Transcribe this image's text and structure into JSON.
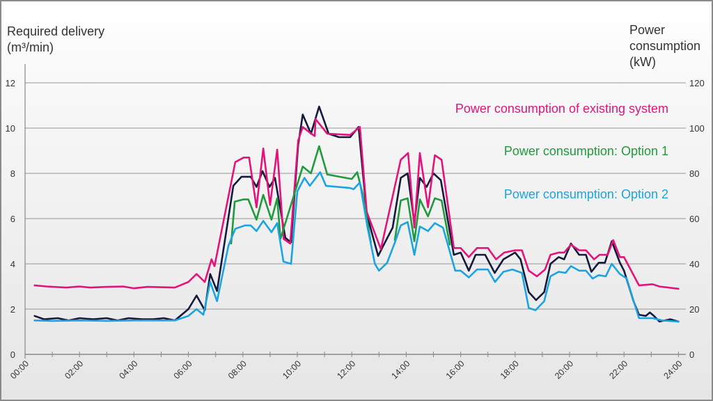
{
  "chart_data": {
    "type": "line",
    "y_left_label": [
      "Required delivery",
      "(m³/min)"
    ],
    "y_right_label": [
      "Power",
      "consumption",
      "(kW)"
    ],
    "y_left_ticks": [
      "0",
      "2",
      "4",
      "6",
      "8",
      "10",
      "12"
    ],
    "y_right_ticks": [
      "0",
      "20",
      "40",
      "60",
      "80",
      "100",
      "120"
    ],
    "ylim_left": [
      0,
      12
    ],
    "ylim_right": [
      0,
      120
    ],
    "xlim_hours": [
      0,
      24
    ],
    "x_ticks": [
      "00:00",
      "02:00",
      "04:00",
      "06:00",
      "08:00",
      "10:00",
      "12:00",
      "14:00",
      "16:00",
      "18:00",
      "20:00",
      "22:00",
      "24:00"
    ],
    "grid": true,
    "series": [
      {
        "name": "Required delivery",
        "axis": "left",
        "unit": "m³/min",
        "color": "#141a3c",
        "legend": false,
        "segments": [
          [
            [
              0.35,
              1.7
            ],
            [
              0.7,
              1.55
            ],
            [
              1.2,
              1.6
            ],
            [
              1.6,
              1.5
            ],
            [
              2.0,
              1.6
            ],
            [
              2.5,
              1.55
            ],
            [
              3.0,
              1.6
            ],
            [
              3.4,
              1.5
            ],
            [
              3.8,
              1.6
            ],
            [
              4.3,
              1.55
            ],
            [
              4.7,
              1.55
            ],
            [
              5.1,
              1.6
            ],
            [
              5.5,
              1.5
            ],
            [
              6.0,
              2.0
            ],
            [
              6.3,
              2.6
            ],
            [
              6.6,
              1.95
            ],
            [
              6.8,
              3.55
            ],
            [
              7.05,
              2.8
            ],
            [
              7.65,
              7.45
            ],
            [
              7.95,
              7.85
            ],
            [
              8.29,
              7.85
            ],
            [
              8.5,
              7.4
            ],
            [
              8.72,
              8.1
            ],
            [
              8.98,
              7.4
            ],
            [
              9.18,
              7.8
            ],
            [
              9.56,
              5.15
            ],
            [
              9.77,
              4.95
            ],
            [
              10.03,
              9.25
            ],
            [
              10.2,
              10.6
            ],
            [
              10.5,
              9.75
            ],
            [
              10.8,
              10.95
            ],
            [
              11.15,
              9.75
            ],
            [
              11.53,
              9.6
            ],
            [
              11.94,
              9.6
            ],
            [
              12.25,
              10.05
            ],
            [
              12.55,
              6.2
            ],
            [
              12.97,
              4.35
            ],
            [
              13.2,
              4.9
            ],
            [
              13.5,
              5.6
            ],
            [
              13.8,
              7.8
            ],
            [
              14.05,
              8.0
            ],
            [
              14.3,
              5.8
            ],
            [
              14.5,
              7.8
            ],
            [
              14.75,
              7.4
            ],
            [
              15.0,
              8.0
            ],
            [
              15.27,
              7.7
            ],
            [
              15.75,
              4.4
            ],
            [
              16.0,
              4.5
            ],
            [
              16.3,
              3.7
            ],
            [
              16.55,
              4.4
            ],
            [
              16.9,
              4.4
            ],
            [
              17.25,
              3.6
            ],
            [
              17.57,
              4.2
            ],
            [
              18.0,
              4.5
            ],
            [
              18.2,
              4.2
            ],
            [
              18.5,
              2.75
            ],
            [
              18.77,
              2.4
            ],
            [
              19.07,
              2.75
            ],
            [
              19.3,
              4.0
            ],
            [
              19.6,
              4.3
            ],
            [
              19.8,
              4.2
            ],
            [
              20.05,
              4.9
            ],
            [
              20.35,
              4.4
            ],
            [
              20.6,
              4.4
            ],
            [
              20.8,
              3.65
            ],
            [
              21.07,
              4.05
            ],
            [
              21.3,
              4.05
            ],
            [
              21.55,
              5.0
            ],
            [
              21.85,
              4.05
            ],
            [
              22.0,
              3.7
            ],
            [
              22.35,
              2.35
            ],
            [
              22.55,
              1.75
            ],
            [
              22.8,
              1.7
            ],
            [
              22.95,
              1.85
            ],
            [
              23.1,
              1.7
            ],
            [
              23.3,
              1.45
            ],
            [
              23.7,
              1.55
            ],
            [
              24.0,
              1.45
            ]
          ]
        ]
      },
      {
        "name": "Power consumption of existing system",
        "axis": "right",
        "unit": "kW",
        "color": "#e2147a",
        "legend": true,
        "segments": [
          [
            [
              0.35,
              30.5
            ],
            [
              0.8,
              30
            ],
            [
              1.5,
              29.5
            ],
            [
              2.0,
              30
            ],
            [
              2.4,
              29.5
            ],
            [
              3.0,
              29.8
            ],
            [
              3.6,
              30
            ],
            [
              4.0,
              29.2
            ],
            [
              4.5,
              29.8
            ],
            [
              5.5,
              29.5
            ],
            [
              6.0,
              32
            ],
            [
              6.3,
              35.5
            ],
            [
              6.6,
              32
            ],
            [
              6.85,
              42
            ],
            [
              6.96,
              39
            ],
            [
              7.72,
              85
            ],
            [
              8.03,
              87
            ],
            [
              8.23,
              87
            ],
            [
              8.5,
              65
            ],
            [
              8.75,
              91
            ],
            [
              9.0,
              66
            ],
            [
              9.26,
              90.5
            ],
            [
              9.5,
              51
            ],
            [
              9.74,
              49
            ],
            [
              10.03,
              94.5
            ],
            [
              10.2,
              100.5
            ],
            [
              10.46,
              98
            ],
            [
              10.64,
              96.5
            ],
            [
              10.67,
              104
            ],
            [
              11.1,
              97.5
            ],
            [
              11.94,
              97
            ],
            [
              12.3,
              100.5
            ],
            [
              12.55,
              63
            ],
            [
              13.07,
              46.5
            ],
            [
              13.8,
              86
            ],
            [
              14.07,
              89
            ],
            [
              14.3,
              56
            ],
            [
              14.5,
              89
            ],
            [
              14.8,
              65
            ],
            [
              15.05,
              88
            ],
            [
              15.3,
              86
            ],
            [
              15.75,
              47
            ],
            [
              16.0,
              47
            ],
            [
              16.3,
              43
            ],
            [
              16.6,
              47
            ],
            [
              17.0,
              47
            ],
            [
              17.3,
              42
            ],
            [
              17.6,
              45
            ],
            [
              18.0,
              46
            ],
            [
              18.25,
              46
            ],
            [
              18.5,
              37
            ],
            [
              18.8,
              34.5
            ],
            [
              19.1,
              37.5
            ],
            [
              19.3,
              44
            ],
            [
              19.6,
              45
            ],
            [
              19.8,
              45
            ],
            [
              20.05,
              48.5
            ],
            [
              20.35,
              46
            ],
            [
              20.6,
              46
            ],
            [
              20.9,
              42
            ],
            [
              21.1,
              44
            ],
            [
              21.4,
              44
            ],
            [
              21.6,
              50.5
            ],
            [
              21.85,
              43
            ],
            [
              22.0,
              43
            ],
            [
              22.55,
              30.5
            ],
            [
              23.05,
              31
            ],
            [
              23.3,
              30
            ],
            [
              24.0,
              29
            ]
          ]
        ]
      },
      {
        "name": "Power consumption: Option 1",
        "axis": "right",
        "unit": "kW",
        "color": "#1f9a3c",
        "legend": true,
        "segments": [
          [
            [
              7.57,
              49
            ],
            [
              7.7,
              67.5
            ],
            [
              8.03,
              68.5
            ],
            [
              8.2,
              68.5
            ],
            [
              8.5,
              59.5
            ],
            [
              8.75,
              70.5
            ],
            [
              9.05,
              59.5
            ],
            [
              9.26,
              69
            ],
            [
              9.38,
              51
            ],
            [
              10.2,
              83
            ],
            [
              10.5,
              80
            ],
            [
              10.8,
              92
            ],
            [
              11.1,
              79.5
            ],
            [
              12.0,
              77.5
            ],
            [
              12.2,
              80.5
            ],
            [
              12.4,
              71
            ],
            [
              12.7,
              49.5
            ]
          ],
          [
            [
              13.58,
              50.5
            ],
            [
              13.8,
              68
            ],
            [
              14.05,
              69
            ],
            [
              14.3,
              50
            ],
            [
              14.5,
              68.5
            ],
            [
              14.8,
              61
            ],
            [
              15.05,
              69
            ],
            [
              15.3,
              68
            ],
            [
              15.6,
              48.5
            ]
          ]
        ]
      },
      {
        "name": "Power consumption: Option 2",
        "axis": "right",
        "unit": "kW",
        "color": "#1ba3e2",
        "legend": true,
        "segments": [
          [
            [
              0.35,
              15
            ],
            [
              1,
              14.8
            ],
            [
              2,
              15
            ],
            [
              3,
              14.8
            ],
            [
              4,
              15
            ],
            [
              5,
              15
            ],
            [
              5.5,
              15
            ],
            [
              6.0,
              17
            ],
            [
              6.3,
              20
            ],
            [
              6.55,
              17.5
            ],
            [
              6.8,
              32
            ],
            [
              7.05,
              23.5
            ],
            [
              7.47,
              48
            ],
            [
              7.72,
              55.5
            ],
            [
              8.08,
              57
            ],
            [
              8.29,
              57
            ],
            [
              8.5,
              54.5
            ],
            [
              8.75,
              59
            ],
            [
              9.05,
              54
            ],
            [
              9.26,
              58
            ],
            [
              9.49,
              41
            ],
            [
              9.77,
              40
            ],
            [
              10.0,
              72
            ],
            [
              10.26,
              78
            ],
            [
              10.46,
              74.5
            ],
            [
              10.84,
              80.5
            ],
            [
              11.05,
              74.5
            ],
            [
              11.94,
              73.5
            ],
            [
              12.07,
              73
            ],
            [
              12.3,
              76
            ],
            [
              12.58,
              56
            ],
            [
              12.85,
              40
            ],
            [
              13.0,
              37
            ],
            [
              13.3,
              40.5
            ],
            [
              13.6,
              50
            ],
            [
              13.8,
              57
            ],
            [
              14.05,
              58.5
            ],
            [
              14.3,
              44
            ],
            [
              14.5,
              56.5
            ],
            [
              14.8,
              54.5
            ],
            [
              15.05,
              58
            ],
            [
              15.35,
              56
            ],
            [
              15.8,
              37
            ],
            [
              16.0,
              37
            ],
            [
              16.3,
              34
            ],
            [
              16.6,
              37.5
            ],
            [
              17.0,
              37.5
            ],
            [
              17.26,
              32
            ],
            [
              17.57,
              36.5
            ],
            [
              17.9,
              37.5
            ],
            [
              18.25,
              36
            ],
            [
              18.5,
              20.5
            ],
            [
              18.75,
              19.5
            ],
            [
              19.07,
              23.5
            ],
            [
              19.3,
              34.5
            ],
            [
              19.6,
              36.5
            ],
            [
              19.85,
              36
            ],
            [
              20.05,
              39
            ],
            [
              20.35,
              37
            ],
            [
              20.6,
              37
            ],
            [
              20.85,
              33.5
            ],
            [
              21.07,
              35
            ],
            [
              21.33,
              34.5
            ],
            [
              21.55,
              40
            ],
            [
              21.85,
              35.5
            ],
            [
              22.1,
              33.5
            ],
            [
              22.55,
              16
            ],
            [
              23.05,
              16
            ],
            [
              23.4,
              15
            ],
            [
              24.0,
              14.5
            ]
          ]
        ]
      }
    ]
  }
}
